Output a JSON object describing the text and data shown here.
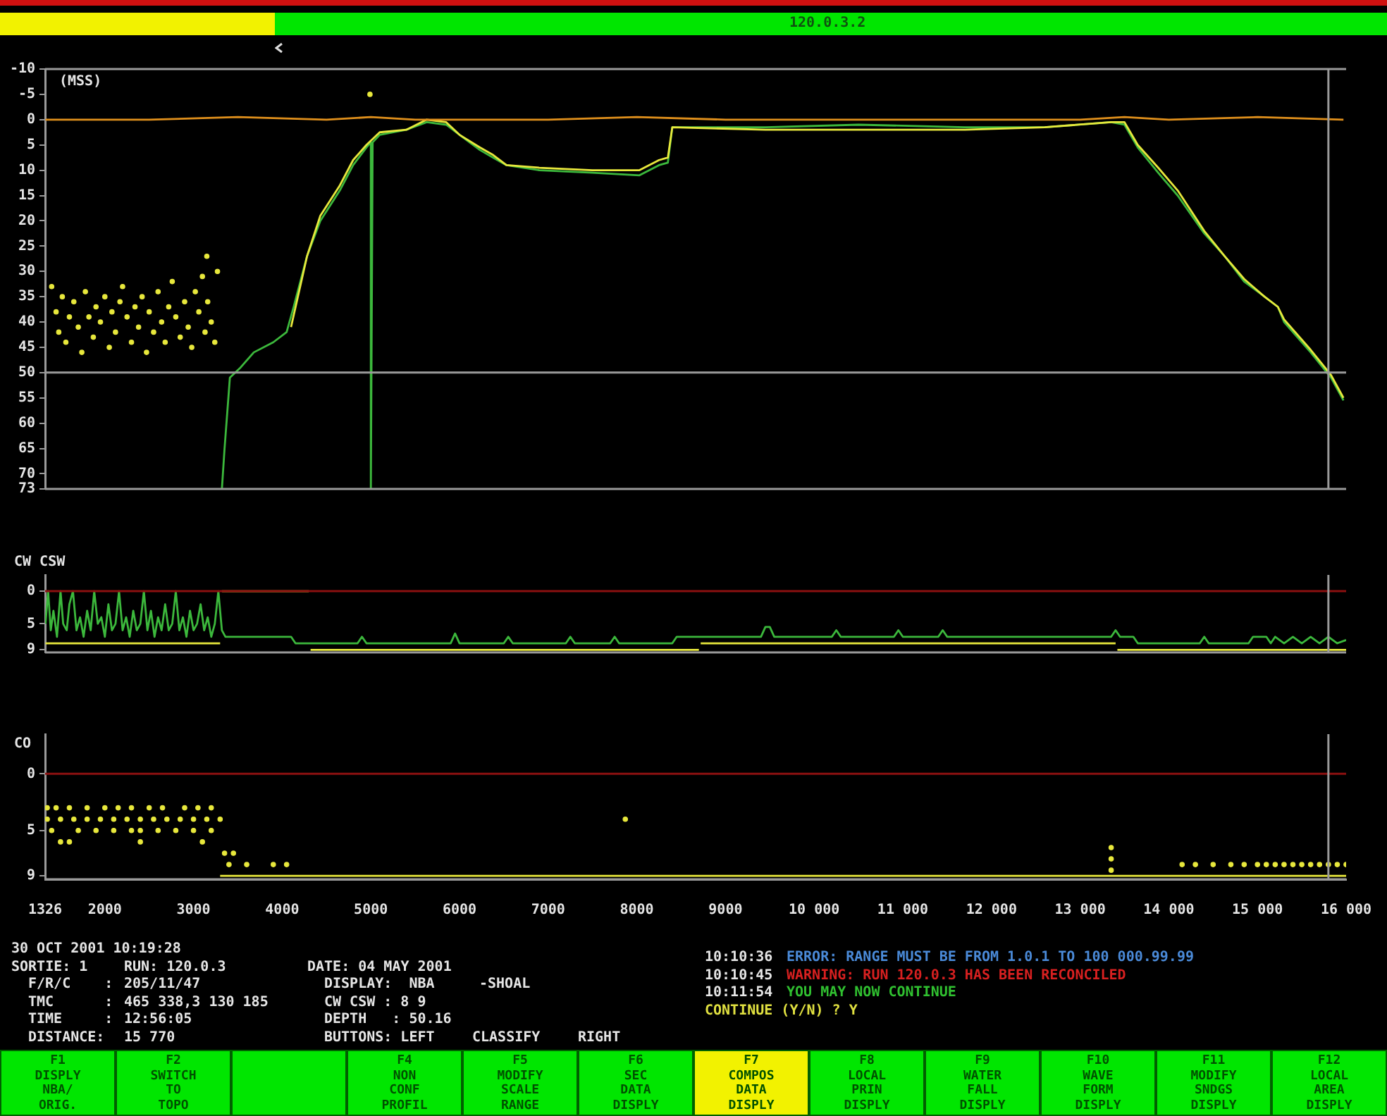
{
  "chart_data": [
    {
      "type": "other",
      "annotations": [
        "120.0.3.2"
      ],
      "colors": [
        "#f2f200",
        "#00e600"
      ]
    },
    {
      "type": "line",
      "ylabel": "(MSS)",
      "xlim": [
        1326,
        16000
      ],
      "ylim": [
        73,
        -10
      ],
      "yticks": [
        -10,
        -5,
        0,
        5,
        10,
        15,
        20,
        25,
        30,
        35,
        40,
        45,
        50,
        55,
        60,
        65,
        70,
        73
      ],
      "tick_labels": "y",
      "ref_lines": [
        {
          "axis": "y",
          "value": 50,
          "color": "#9a9a9a"
        },
        {
          "axis": "x",
          "value": 15800,
          "color": "#9a9a9a"
        }
      ],
      "series": [
        {
          "color": "#e0901c",
          "x": [
            1330,
            2500,
            3500,
            4500,
            5000,
            5500,
            6000,
            7000,
            8000,
            9000,
            10000,
            11000,
            12000,
            13000,
            13500,
            14000,
            15000,
            15970
          ],
          "values": [
            0,
            0,
            -0.5,
            0,
            -0.5,
            0,
            0,
            0,
            -0.5,
            0,
            0,
            0,
            0,
            0,
            -0.5,
            0,
            -0.5,
            0
          ]
        },
        {
          "color": "#e8e83c",
          "x": [
            4100,
            4280,
            4430,
            4650,
            4800,
            4950,
            5100,
            5400,
            5630,
            5850,
            6000,
            6230,
            6380,
            6530,
            6900,
            7500,
            8030,
            8250,
            8350,
            8400,
            9450,
            10500,
            11700,
            12600,
            13350,
            13500,
            13650,
            13880,
            14100,
            14400,
            14630,
            14850,
            15080,
            15230,
            15300,
            15600,
            15830,
            15970
          ],
          "values": [
            41,
            27,
            19,
            13,
            8,
            5,
            2.5,
            2,
            0,
            0.5,
            3,
            5.5,
            7,
            9,
            9.5,
            10,
            10,
            8,
            7.5,
            1.5,
            2,
            2,
            2,
            1.5,
            0.5,
            0.5,
            5,
            9.5,
            14,
            22,
            27,
            31.5,
            35,
            37,
            39.5,
            45.5,
            50.5,
            55
          ]
        },
        {
          "color": "#3cb83c",
          "x": [
            3320,
            3350,
            3410,
            3530,
            3680,
            3900,
            4050,
            4130,
            4280,
            4430,
            4650,
            4800,
            4950,
            5000,
            5000,
            5020,
            5100,
            5400,
            5630,
            5850,
            6000,
            6230,
            6380,
            6530,
            6900,
            7500,
            8030,
            8250,
            8350,
            8400,
            9450,
            10500,
            11700,
            12600,
            13350,
            13500,
            13650,
            13880,
            14100,
            14400,
            14630,
            14850,
            15080,
            15230,
            15300,
            15600,
            15830,
            15970
          ],
          "values": [
            73,
            65,
            51,
            49,
            46,
            44,
            42,
            37,
            27,
            20,
            14,
            9,
            5.5,
            4.5,
            73,
            4.5,
            3,
            2,
            0.5,
            1,
            3,
            6,
            7.5,
            9,
            10,
            10.5,
            11,
            9,
            8.5,
            1.5,
            1.5,
            1,
            1.5,
            1.5,
            0.5,
            1,
            5.5,
            10.5,
            15,
            22.5,
            27,
            32,
            35,
            37,
            40,
            46,
            51,
            55.5
          ]
        },
        {
          "type": "scatter",
          "color": "#e8e83c",
          "x": [
            1400,
            1450,
            1480,
            1520,
            1560,
            1600,
            1650,
            1700,
            1740,
            1780,
            1820,
            1870,
            1900,
            1950,
            2000,
            2050,
            2080,
            2120,
            2170,
            2200,
            2250,
            2300,
            2340,
            2380,
            2420,
            2470,
            2500,
            2550,
            2600,
            2640,
            2680,
            2720,
            2760,
            2800,
            2850,
            2900,
            2940,
            2980,
            3020,
            3060,
            3100,
            3130,
            3160,
            3200,
            3240,
            3270,
            3150,
            4990
          ],
          "values": [
            33,
            38,
            42,
            35,
            44,
            39,
            36,
            41,
            46,
            34,
            39,
            43,
            37,
            40,
            35,
            45,
            38,
            42,
            36,
            33,
            39,
            44,
            37,
            41,
            35,
            46,
            38,
            42,
            34,
            40,
            44,
            37,
            32,
            39,
            43,
            36,
            41,
            45,
            34,
            38,
            31,
            42,
            36,
            40,
            44,
            30,
            27,
            -5
          ]
        }
      ]
    },
    {
      "type": "line",
      "ylabel": "CW CSW",
      "xlim": [
        1326,
        16000
      ],
      "ylim": [
        9.4,
        -2.5
      ],
      "yticks": [
        0,
        5,
        9
      ],
      "tick_labels": "y",
      "ref_lines": [
        {
          "axis": "y",
          "value": 0,
          "color": "#8b1010"
        },
        {
          "axis": "x",
          "value": 15800,
          "color": "#9a9a9a"
        }
      ],
      "series": [
        {
          "color": "#e8e83c",
          "x": [
            1330,
            3300,
            3310,
            3320,
            4300,
            4310,
            4320,
            8700,
            8710,
            8720,
            13400,
            13410,
            13420,
            16000
          ],
          "values": [
            8,
            8,
            null,
            0,
            0,
            null,
            9,
            9,
            null,
            8,
            8,
            null,
            9,
            9
          ]
        },
        {
          "color": "#3cb83c",
          "x": [
            1330,
            1360,
            1390,
            1420,
            1460,
            1500,
            1530,
            1570,
            1600,
            1640,
            1680,
            1720,
            1760,
            1800,
            1840,
            1880,
            1920,
            1960,
            2000,
            2040,
            2080,
            2120,
            2160,
            2200,
            2240,
            2280,
            2320,
            2360,
            2400,
            2440,
            2480,
            2520,
            2560,
            2600,
            2640,
            2680,
            2720,
            2760,
            2800,
            2840,
            2880,
            2920,
            2960,
            3000,
            3040,
            3080,
            3120,
            3160,
            3200,
            3240,
            3280,
            3320,
            3360,
            4100,
            4150,
            4850,
            4900,
            4950,
            5900,
            5950,
            6000,
            6500,
            6550,
            6600,
            7200,
            7250,
            7300,
            7700,
            7750,
            7800,
            8400,
            8450,
            9400,
            9450,
            9500,
            9550,
            10200,
            10250,
            10300,
            10900,
            10950,
            11000,
            11400,
            11450,
            11500,
            13350,
            13400,
            13450,
            13600,
            13650,
            14350,
            14400,
            14450,
            14900,
            14950,
            15100,
            15150,
            15200,
            15300,
            15400,
            15500,
            15600,
            15700,
            15800,
            15900,
            16000
          ],
          "values": [
            5,
            0,
            6,
            3,
            7,
            0,
            5,
            6,
            2,
            0,
            6,
            4,
            7,
            3,
            6,
            0,
            5,
            4,
            7,
            2,
            6,
            5,
            0,
            6,
            4,
            7,
            3,
            6,
            5,
            0,
            6,
            3,
            7,
            4,
            6,
            2,
            6,
            5,
            0,
            6,
            4,
            7,
            3,
            6,
            5,
            2,
            6,
            4,
            7,
            5,
            0,
            6,
            7,
            7,
            8,
            8,
            7,
            8,
            8,
            6.5,
            8,
            8,
            7,
            8,
            8,
            7,
            8,
            8,
            7,
            8,
            8,
            7,
            7,
            5.5,
            5.5,
            7,
            7,
            6,
            7,
            7,
            6,
            7,
            7,
            6,
            7,
            7,
            6,
            7,
            7,
            8,
            8,
            7,
            8,
            8,
            7,
            7,
            8,
            7,
            8,
            7,
            8,
            7,
            8,
            7,
            8,
            7.5
          ]
        }
      ]
    },
    {
      "type": "line",
      "ylabel": "CO",
      "xlim": [
        1326,
        16000
      ],
      "ylim": [
        9.3,
        -3.5
      ],
      "yticks": [
        0,
        5,
        9
      ],
      "xticks": [
        1326,
        2000,
        3000,
        4000,
        5000,
        6000,
        7000,
        8000,
        9000,
        {
          "value": 10000,
          "label": "10 000"
        },
        {
          "value": 11000,
          "label": "11 000"
        },
        {
          "value": 12000,
          "label": "12 000"
        },
        {
          "value": 13000,
          "label": "13 000"
        },
        {
          "value": 14000,
          "label": "14 000"
        },
        {
          "value": 15000,
          "label": "15 000"
        },
        {
          "value": 16000,
          "label": "16 000"
        }
      ],
      "ref_lines": [
        {
          "axis": "y",
          "value": 0,
          "color": "#8b1010"
        },
        {
          "axis": "x",
          "value": 15800,
          "color": "#9a9a9a"
        }
      ],
      "series": [
        {
          "color": "#e8e83c",
          "x": [
            3300,
            16000
          ],
          "values": [
            9,
            9
          ]
        },
        {
          "type": "scatter",
          "color": "#e8e83c",
          "x": [
            1350,
            1450,
            1600,
            1800,
            2000,
            2150,
            2300,
            2500,
            2650,
            2900,
            3050,
            3200,
            1350,
            1500,
            1650,
            1800,
            1950,
            2100,
            2250,
            2400,
            2550,
            2700,
            2850,
            3000,
            3150,
            3300,
            1400,
            1700,
            1900,
            2100,
            2300,
            2400,
            2600,
            2800,
            3000,
            3200,
            1500,
            1600,
            2400,
            3100,
            3350,
            3400,
            3450,
            3600,
            3900,
            4050,
            7870,
            13350,
            13350,
            13350,
            14150,
            14300,
            14500,
            14700,
            14850,
            15000,
            15100,
            15200,
            15300,
            15400,
            15500,
            15600,
            15700,
            15800,
            15900,
            16000
          ],
          "values": [
            3,
            3,
            3,
            3,
            3,
            3,
            3,
            3,
            3,
            3,
            3,
            3,
            4,
            4,
            4,
            4,
            4,
            4,
            4,
            4,
            4,
            4,
            4,
            4,
            4,
            4,
            5,
            5,
            5,
            5,
            5,
            5,
            5,
            5,
            5,
            5,
            6,
            6,
            6,
            6,
            7,
            8,
            7,
            8,
            8,
            8,
            4,
            6.5,
            7.5,
            8.5,
            8,
            8,
            8,
            8,
            8,
            8,
            8,
            8,
            8,
            8,
            8,
            8,
            8,
            8,
            8,
            8
          ]
        }
      ]
    },
    {
      "type": "other",
      "annotations": [
        "30 OCT 2001 10:19:28",
        "SORTIE: 1",
        "RUN: 120.0.3",
        "DATE: 04 MAY 2001",
        "F/R/C    :",
        "205/11/47",
        "DISPLAY:  NBA",
        "-SHOAL",
        "TMC      :",
        "465 338,3 130 185",
        "CW CSW : 8 9",
        "TIME     :",
        "12:56:05",
        "DEPTH   : 50.16",
        "DISTANCE:",
        "15 770",
        "BUTTONS: LEFT",
        "CLASSIFY",
        "RIGHT",
        "10:10:36",
        "ERROR: RANGE MUST BE FROM 1.0.1 TO 100 000.99.99",
        "10:10:45",
        "WARNING: RUN 120.0.3 HAS BEEN RECONCILED",
        "10:11:54",
        "YOU MAY NOW CONTINUE",
        "CONTINUE (Y/N) ? Y"
      ],
      "colors": [
        "#e6e6e6",
        "#e6e6e6",
        "#e6e6e6",
        "#e6e6e6",
        "#e6e6e6",
        "#e6e6e6",
        "#e6e6e6",
        "#e6e6e6",
        "#e6e6e6",
        "#e6e6e6",
        "#e6e6e6",
        "#e6e6e6",
        "#e6e6e6",
        "#e6e6e6",
        "#e6e6e6",
        "#e6e6e6",
        "#e6e6e6",
        "#e6e6e6",
        "#e6e6e6",
        "#e6e6e6",
        "#4a8ad8",
        "#e6e6e6",
        "#d82020",
        "#e6e6e6",
        "#30c030",
        "#e0e040"
      ]
    },
    {
      "type": "other",
      "annotations": [
        "F1\nDISPLY\nNBA/\nORIG.",
        "F2\nSWITCH\nTO\nTOPO",
        "F4\nNON\nCONF\nPROFIL",
        "F5\nMODIFY\nSCALE\nRANGE",
        "F6\nSEC\nDATA\nDISPLY",
        "F7\nCOMPOS\nDATA\nDISPLY",
        "F8\nLOCAL\nPRIN\nDISPLY",
        "F9\nWATER\nFALL\nDISPLY",
        "F10\nWAVE\nFORM\nDISPLY",
        "F11\nMODIFY\nSNDGS\nDISPLY",
        "F12\nLOCAL\nAREA\nDISPLY"
      ],
      "colors": [
        "#00e600",
        "#00e600",
        "#00e600",
        "#00e600",
        "#00e600",
        "#f2f200",
        "#00e600",
        "#00e600",
        "#00e600",
        "#00e600",
        "#00e600"
      ]
    }
  ]
}
